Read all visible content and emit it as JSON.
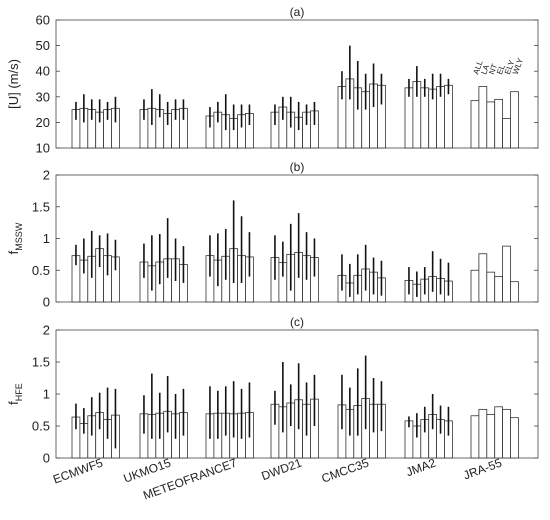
{
  "chart_data": [
    {
      "type": "bar",
      "panel_label": "(a)",
      "ylabel_main": "[U] (m/s)",
      "ylabel_sub": "",
      "ylim": [
        10,
        60
      ],
      "yticks": [
        10,
        20,
        30,
        40,
        50,
        60
      ],
      "grid": false,
      "legend": [
        "ALL",
        "LA",
        "NT",
        "EL",
        "ELY",
        "WLY"
      ],
      "legend_placement": "top-right above JRA-55 bars",
      "models": [
        {
          "name": "ECMWF5",
          "values": [
            25,
            25.5,
            25,
            24,
            25,
            25.5
          ],
          "err_low": [
            21,
            20,
            21,
            20,
            21,
            20
          ],
          "err_high": [
            28,
            31,
            29,
            29,
            28,
            30
          ]
        },
        {
          "name": "UKMO15",
          "values": [
            25,
            25.5,
            25,
            23.5,
            25,
            25.5
          ],
          "err_low": [
            21,
            19,
            22,
            19,
            21,
            21
          ],
          "err_high": [
            29,
            33,
            31,
            28,
            29,
            29
          ]
        },
        {
          "name": "METEOFRANCE7",
          "values": [
            22.5,
            24,
            23,
            21.5,
            23,
            23.5
          ],
          "err_low": [
            18,
            20,
            17,
            17,
            18,
            19
          ],
          "err_high": [
            26,
            28,
            31,
            27,
            27,
            27
          ]
        },
        {
          "name": "DWD21",
          "values": [
            24,
            26,
            24,
            22,
            24,
            24.5
          ],
          "err_low": [
            19,
            21,
            18,
            17,
            19,
            19
          ],
          "err_high": [
            27,
            30,
            30,
            28,
            27,
            28
          ]
        },
        {
          "name": "CMCC35",
          "values": [
            34,
            37,
            33.5,
            32,
            35,
            34.5
          ],
          "err_low": [
            29,
            29,
            25,
            25,
            26,
            27
          ],
          "err_high": [
            40,
            50,
            44,
            39,
            43,
            39
          ]
        },
        {
          "name": "JMA2",
          "values": [
            33.5,
            36,
            33.5,
            33,
            34,
            34.5
          ],
          "err_low": [
            30,
            30,
            30,
            29,
            30,
            31
          ],
          "err_high": [
            37,
            42,
            37,
            39,
            39,
            37
          ]
        },
        {
          "name": "JRA-55",
          "values": [
            28.5,
            34,
            28,
            29,
            21.5,
            32
          ],
          "err_low": [],
          "err_high": []
        }
      ]
    },
    {
      "type": "bar",
      "panel_label": "(b)",
      "ylabel_main": "f",
      "ylabel_sub": "MSSW",
      "ylim": [
        0,
        2
      ],
      "yticks": [
        0,
        0.5,
        1,
        1.5,
        2
      ],
      "grid": false,
      "models": [
        {
          "name": "ECMWF5",
          "values": [
            0.73,
            0.66,
            0.72,
            0.84,
            0.73,
            0.71
          ],
          "err_low": [
            0.58,
            0.45,
            0.38,
            0.55,
            0.42,
            0.5
          ],
          "err_high": [
            0.9,
            1.0,
            1.12,
            1.05,
            1.08,
            0.98
          ]
        },
        {
          "name": "UKMO15",
          "values": [
            0.63,
            0.57,
            0.63,
            0.68,
            0.68,
            0.59
          ],
          "err_low": [
            0.38,
            0.18,
            0.28,
            0.38,
            0.33,
            0.3
          ],
          "err_high": [
            0.92,
            1.05,
            1.07,
            1.32,
            1.0,
            0.88
          ]
        },
        {
          "name": "METEOFRANCE7",
          "values": [
            0.73,
            0.66,
            0.72,
            0.84,
            0.73,
            0.71
          ],
          "err_low": [
            0.4,
            0.25,
            0.35,
            0.3,
            0.3,
            0.4
          ],
          "err_high": [
            1.05,
            1.08,
            1.15,
            1.6,
            1.35,
            1.1
          ]
        },
        {
          "name": "DWD21",
          "values": [
            0.7,
            0.62,
            0.75,
            0.78,
            0.73,
            0.7
          ],
          "err_low": [
            0.35,
            0.4,
            0.18,
            0.38,
            0.35,
            0.4
          ],
          "err_high": [
            1.05,
            0.95,
            1.23,
            1.4,
            1.1,
            1.0
          ]
        },
        {
          "name": "CMCC35",
          "values": [
            0.42,
            0.3,
            0.42,
            0.52,
            0.47,
            0.38
          ],
          "err_low": [
            0.18,
            0.08,
            0.12,
            0.18,
            0.12,
            0.1
          ],
          "err_high": [
            0.75,
            0.6,
            0.75,
            0.9,
            0.7,
            0.65
          ]
        },
        {
          "name": "JMA2",
          "values": [
            0.34,
            0.28,
            0.36,
            0.4,
            0.37,
            0.33
          ],
          "err_low": [
            0.12,
            0.08,
            0.12,
            0.16,
            0.12,
            0.1
          ],
          "err_high": [
            0.55,
            0.48,
            0.55,
            0.8,
            0.68,
            0.62
          ]
        },
        {
          "name": "JRA-55",
          "values": [
            0.5,
            0.76,
            0.47,
            0.4,
            0.88,
            0.32
          ],
          "err_low": [],
          "err_high": []
        }
      ]
    },
    {
      "type": "bar",
      "panel_label": "(c)",
      "ylabel_main": "f",
      "ylabel_sub": "HFE",
      "ylim": [
        0,
        2
      ],
      "yticks": [
        0,
        0.5,
        1,
        1.5,
        2
      ],
      "grid": false,
      "models": [
        {
          "name": "ECMWF5",
          "values": [
            0.64,
            0.54,
            0.66,
            0.71,
            0.6,
            0.67
          ],
          "err_low": [
            0.45,
            0.38,
            0.35,
            0.45,
            0.3,
            0.15
          ],
          "err_high": [
            0.85,
            0.78,
            0.95,
            1.02,
            1.1,
            1.08
          ]
        },
        {
          "name": "UKMO15",
          "values": [
            0.69,
            0.68,
            0.7,
            0.73,
            0.69,
            0.71
          ],
          "err_low": [
            0.38,
            0.3,
            0.3,
            0.4,
            0.3,
            0.35
          ],
          "err_high": [
            0.98,
            1.32,
            1.02,
            1.28,
            1.0,
            1.08
          ]
        },
        {
          "name": "METEOFRANCE7",
          "values": [
            0.69,
            0.7,
            0.7,
            0.69,
            0.7,
            0.71
          ],
          "err_low": [
            0.3,
            0.3,
            0.35,
            0.32,
            0.3,
            0.32
          ],
          "err_high": [
            1.12,
            1.05,
            1.12,
            1.2,
            1.08,
            1.18
          ]
        },
        {
          "name": "DWD21",
          "values": [
            0.84,
            0.8,
            0.86,
            0.91,
            0.84,
            0.92
          ],
          "err_low": [
            0.52,
            0.4,
            0.5,
            0.45,
            0.35,
            0.5
          ],
          "err_high": [
            1.05,
            1.5,
            1.15,
            1.48,
            1.18,
            1.3
          ]
        },
        {
          "name": "CMCC35",
          "values": [
            0.83,
            0.76,
            0.82,
            0.93,
            0.84,
            0.84
          ],
          "err_low": [
            0.45,
            0.35,
            0.35,
            0.45,
            0.4,
            0.42
          ],
          "err_high": [
            1.3,
            1.1,
            1.4,
            1.6,
            1.25,
            1.2
          ]
        },
        {
          "name": "JMA2",
          "values": [
            0.58,
            0.5,
            0.6,
            0.68,
            0.6,
            0.58
          ],
          "err_low": [
            0.48,
            0.32,
            0.4,
            0.45,
            0.38,
            0.35
          ],
          "err_high": [
            0.65,
            0.7,
            0.8,
            1.0,
            0.82,
            0.8
          ]
        },
        {
          "name": "JRA-55",
          "values": [
            0.66,
            0.76,
            0.68,
            0.8,
            0.76,
            0.63
          ],
          "err_low": [],
          "err_high": []
        }
      ]
    }
  ]
}
